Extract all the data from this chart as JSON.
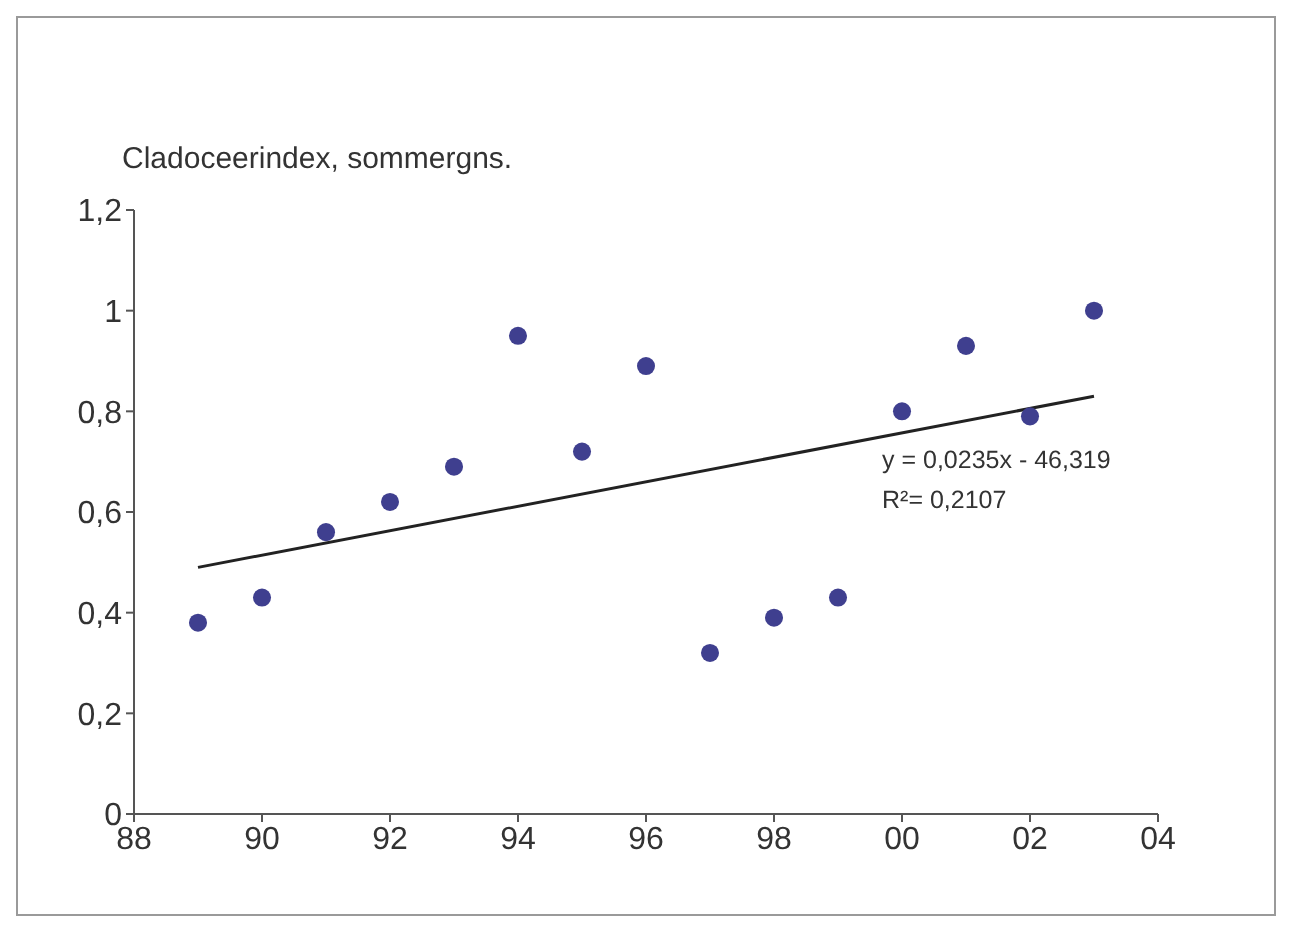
{
  "chart_data": {
    "type": "scatter",
    "title": "Cladoceerindex, sommergns.",
    "xlim": [
      1988,
      2004
    ],
    "xticks": [
      {
        "value": 1988,
        "label": "88"
      },
      {
        "value": 1990,
        "label": "90"
      },
      {
        "value": 1992,
        "label": "92"
      },
      {
        "value": 1994,
        "label": "94"
      },
      {
        "value": 1996,
        "label": "96"
      },
      {
        "value": 1998,
        "label": "98"
      },
      {
        "value": 2000,
        "label": "00"
      },
      {
        "value": 2002,
        "label": "02"
      },
      {
        "value": 2004,
        "label": "04"
      }
    ],
    "ylim": [
      0,
      1.2
    ],
    "yticks": [
      0,
      {
        "value": 0.2,
        "label": "0,2"
      },
      {
        "value": 0.4,
        "label": "0,4"
      },
      {
        "value": 0.6,
        "label": "0,6"
      },
      {
        "value": 0.8,
        "label": "0,8"
      },
      1,
      {
        "value": 1.2,
        "label": "1,2"
      }
    ],
    "marker": "circle",
    "grid": false,
    "series": [
      {
        "color": "#3f3f8f",
        "x": [
          1989,
          1990,
          1991,
          1992,
          1993,
          1994,
          1995,
          1996,
          1997,
          1998,
          1999,
          2000,
          2001,
          2002,
          2003
        ],
        "values": [
          0.38,
          0.43,
          0.56,
          0.62,
          0.69,
          0.95,
          0.72,
          0.89,
          0.32,
          0.39,
          0.43,
          0.8,
          0.93,
          0.79,
          1.0
        ]
      },
      {
        "type": "line",
        "marker": "none",
        "color": "#222222",
        "x": [
          1989,
          2003
        ],
        "values": [
          0.49,
          0.83
        ]
      }
    ],
    "annotations": [
      "y = 0,0235x - 46,319",
      "R²= 0,2107"
    ]
  }
}
